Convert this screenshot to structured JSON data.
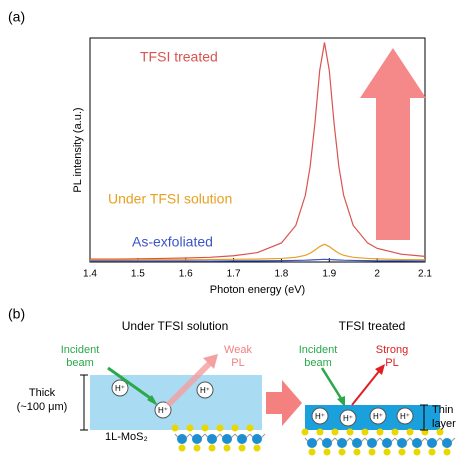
{
  "chart_data": {
    "type": "line",
    "panel_label": "(a)",
    "x_label": "Photon energy (eV)",
    "y_label": "PL intensity (a.u.)",
    "x": [
      1.4,
      1.45,
      1.5,
      1.55,
      1.6,
      1.65,
      1.7,
      1.75,
      1.8,
      1.83,
      1.85,
      1.86,
      1.87,
      1.88,
      1.89,
      1.9,
      1.91,
      1.92,
      1.93,
      1.95,
      1.98,
      2.0,
      2.05,
      2.1
    ],
    "series": [
      {
        "name": "TFSI treated",
        "color": "#d9534f",
        "values": [
          0.013,
          0.013,
          0.014,
          0.016,
          0.018,
          0.021,
          0.028,
          0.042,
          0.085,
          0.163,
          0.298,
          0.426,
          0.62,
          0.855,
          0.98,
          0.855,
          0.62,
          0.426,
          0.298,
          0.163,
          0.085,
          0.061,
          0.035,
          0.025
        ]
      },
      {
        "name": "Under TFSI solution",
        "color": "#e8a020",
        "values": [
          0.009,
          0.009,
          0.01,
          0.01,
          0.01,
          0.011,
          0.012,
          0.013,
          0.016,
          0.021,
          0.03,
          0.039,
          0.053,
          0.069,
          0.079,
          0.069,
          0.053,
          0.039,
          0.03,
          0.021,
          0.016,
          0.014,
          0.011,
          0.01
        ]
      },
      {
        "name": "As-exfoliated",
        "color": "#3a55c8",
        "values": [
          0.004,
          0.004,
          0.004,
          0.004,
          0.004,
          0.004,
          0.005,
          0.005,
          0.006,
          0.007,
          0.008,
          0.009,
          0.01,
          0.011,
          0.012,
          0.011,
          0.01,
          0.009,
          0.008,
          0.007,
          0.006,
          0.005,
          0.005,
          0.004
        ]
      }
    ],
    "xlim": [
      1.4,
      2.1
    ],
    "xticks": [
      1.4,
      1.5,
      1.6,
      1.7,
      1.8,
      1.9,
      2,
      2.1
    ],
    "ylim": [
      0,
      1
    ],
    "grid": false
  },
  "diagram": {
    "panel_label": "(b)",
    "left_title": "Under TFSI solution",
    "right_title": "TFSI treated",
    "incident_beam": [
      "Incident",
      "beam"
    ],
    "weak_pl": [
      "Weak",
      "PL"
    ],
    "strong_pl": [
      "Strong",
      "PL"
    ],
    "thick": [
      "Thick",
      "(~100 μm)"
    ],
    "thin": [
      "Thin",
      "layer"
    ],
    "monolayer": "1L-MoS₂",
    "ion": "H⁺"
  }
}
